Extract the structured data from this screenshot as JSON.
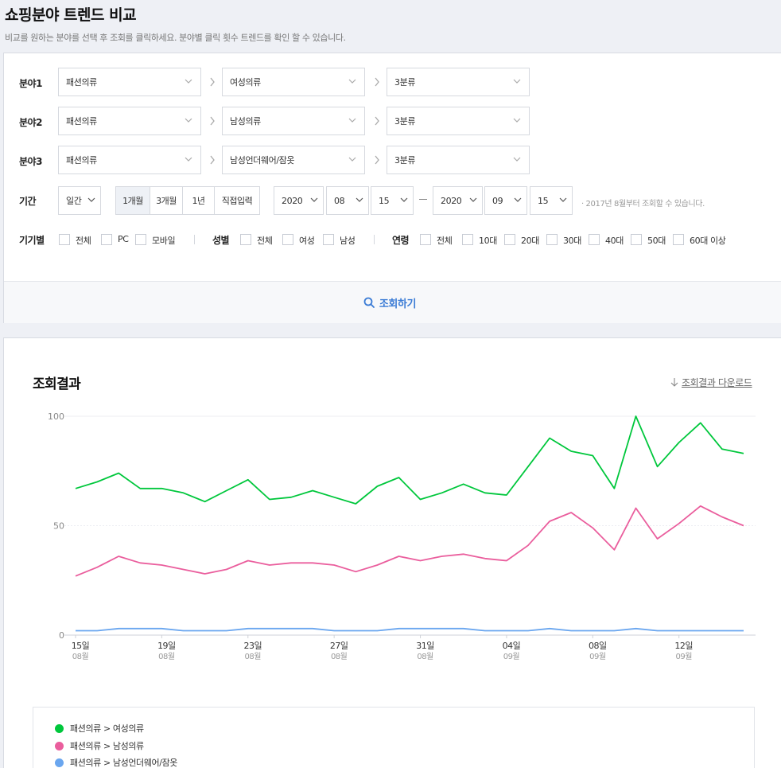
{
  "header": {
    "title": "쇼핑분야 트렌드 비교",
    "description": "비교를 원하는 분야를 선택 후 조회를 클릭하세요. 분야별 클릭 횟수 트렌드를 확인 할 수 있습니다."
  },
  "filters": {
    "rows": [
      {
        "label": "분야1",
        "cat1": "패션의류",
        "cat2": "여성의류",
        "cat3": "3분류"
      },
      {
        "label": "분야2",
        "cat1": "패션의류",
        "cat2": "남성의류",
        "cat3": "3분류"
      },
      {
        "label": "분야3",
        "cat1": "패션의류",
        "cat2": "남성언더웨어/잠옷",
        "cat3": "3분류"
      }
    ],
    "period": {
      "label": "기간",
      "unit": "일간",
      "buttons": [
        "1개월",
        "3개월",
        "1년",
        "직접입력"
      ],
      "start": {
        "year": "2020",
        "month": "08",
        "day": "15"
      },
      "end": {
        "year": "2020",
        "month": "09",
        "day": "15"
      },
      "note": "· 2017년 8월부터 조회할 수 있습니다."
    },
    "device": {
      "label": "기기별",
      "options": [
        "전체",
        "PC",
        "모바일"
      ]
    },
    "gender": {
      "label": "성별",
      "options": [
        "전체",
        "여성",
        "남성"
      ]
    },
    "age": {
      "label": "연령",
      "options": [
        "전체",
        "10대",
        "20대",
        "30대",
        "40대",
        "50대",
        "60대 이상"
      ]
    },
    "search_label": "조회하기"
  },
  "result": {
    "title": "조회결과",
    "download_label": "조회결과 다운로드"
  },
  "colors": {
    "green": "#00c73c",
    "pink": "#ea5e9d",
    "blue": "#6aa6ef",
    "accent": "#3a7bd5"
  },
  "chart_data": {
    "type": "line",
    "x": [
      "08-15",
      "08-16",
      "08-17",
      "08-18",
      "08-19",
      "08-20",
      "08-21",
      "08-22",
      "08-23",
      "08-24",
      "08-25",
      "08-26",
      "08-27",
      "08-28",
      "08-29",
      "08-30",
      "08-31",
      "09-01",
      "09-02",
      "09-03",
      "09-04",
      "09-05",
      "09-06",
      "09-07",
      "09-08",
      "09-09",
      "09-10",
      "09-11",
      "09-12",
      "09-13",
      "09-14",
      "09-15"
    ],
    "x_tick_labels": [
      {
        "day": "15일",
        "month": "08월"
      },
      {
        "day": "19일",
        "month": "08월"
      },
      {
        "day": "23일",
        "month": "08월"
      },
      {
        "day": "27일",
        "month": "08월"
      },
      {
        "day": "31일",
        "month": "08월"
      },
      {
        "day": "04일",
        "month": "09월"
      },
      {
        "day": "08일",
        "month": "09월"
      },
      {
        "day": "12일",
        "month": "09월"
      }
    ],
    "y_ticks": [
      "0",
      "50",
      "100"
    ],
    "ylim": [
      0,
      100
    ],
    "series": [
      {
        "name": "패션의류 > 여성의류",
        "color": "#00c73c",
        "values": [
          67,
          70,
          74,
          67,
          67,
          65,
          61,
          66,
          71,
          62,
          63,
          66,
          63,
          60,
          68,
          72,
          62,
          65,
          69,
          65,
          64,
          77,
          90,
          84,
          82,
          67,
          100,
          77,
          88,
          97,
          85,
          83
        ]
      },
      {
        "name": "패션의류 > 남성의류",
        "color": "#ea5e9d",
        "values": [
          27,
          31,
          36,
          33,
          32,
          30,
          28,
          30,
          34,
          32,
          33,
          33,
          32,
          29,
          32,
          36,
          34,
          36,
          37,
          35,
          34,
          41,
          52,
          56,
          49,
          39,
          58,
          44,
          51,
          59,
          54,
          50
        ]
      },
      {
        "name": "패션의류 > 남성언더웨어/잠옷",
        "color": "#6aa6ef",
        "values": [
          2,
          2,
          3,
          3,
          3,
          2,
          2,
          2,
          3,
          3,
          3,
          3,
          2,
          2,
          2,
          3,
          3,
          3,
          3,
          2,
          2,
          2,
          3,
          2,
          2,
          2,
          3,
          2,
          2,
          2,
          2,
          2
        ]
      }
    ]
  }
}
